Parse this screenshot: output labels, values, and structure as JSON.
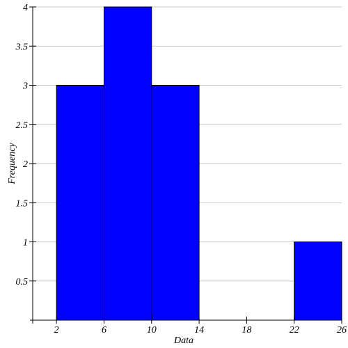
{
  "chart_data": {
    "type": "bar",
    "subtype": "histogram",
    "bins": [
      {
        "start": 2,
        "end": 6,
        "value": 3
      },
      {
        "start": 6,
        "end": 10,
        "value": 4
      },
      {
        "start": 10,
        "end": 14,
        "value": 3
      },
      {
        "start": 14,
        "end": 18,
        "value": 0
      },
      {
        "start": 18,
        "end": 22,
        "value": 0
      },
      {
        "start": 22,
        "end": 26,
        "value": 1
      }
    ],
    "xlabel": "Data",
    "ylabel": "Frequency",
    "xticks": [
      "2",
      "6",
      "10",
      "14",
      "18",
      "22",
      "26"
    ],
    "yticks": [
      "0.5",
      "1",
      "1.5",
      "2",
      "2.5",
      "3",
      "3.5",
      "4"
    ],
    "xlim": [
      0,
      26
    ],
    "ylim": [
      0,
      4
    ],
    "grid": true,
    "legend": "none",
    "bar_color": "#0000ff",
    "bar_edge_color": "#000000",
    "grid_color": "#c8c8c8"
  }
}
